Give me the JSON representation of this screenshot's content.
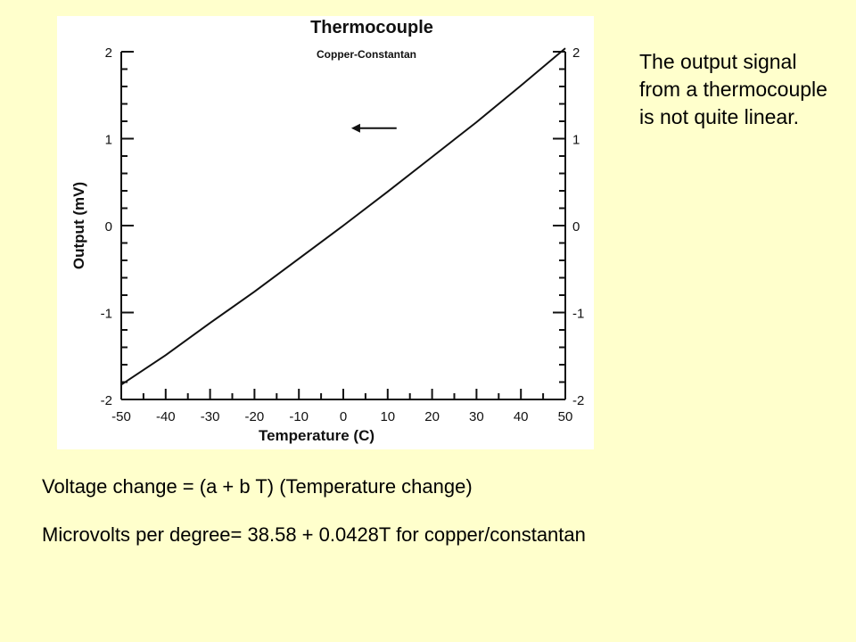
{
  "chart_data": {
    "type": "line",
    "title": "Thermocouple",
    "subtitle": "Copper-Constantan",
    "xlabel": "Temperature (C)",
    "ylabel": "Output (mV)",
    "xlim": [
      -50,
      50
    ],
    "ylim": [
      -2,
      2
    ],
    "x_ticks": [
      "-50",
      "-40",
      "-30",
      "-20",
      "-10",
      "0",
      "10",
      "20",
      "30",
      "40",
      "50"
    ],
    "y_ticks_left": [
      "-2",
      "-1",
      "0",
      "1",
      "2"
    ],
    "y_ticks_right": [
      "-2",
      "-1",
      "0",
      "1",
      "2"
    ],
    "series": [
      {
        "x": [
          -50,
          -40,
          -30,
          -20,
          -10,
          0,
          10,
          20,
          30,
          40,
          50
        ],
        "values": [
          -1.83,
          -1.49,
          -1.12,
          -0.76,
          -0.38,
          0.0,
          0.39,
          0.79,
          1.19,
          1.61,
          2.04
        ]
      }
    ],
    "annotation": "arrow pointing left toward the curve near 1.1 mV"
  },
  "side_note": "The output signal from a thermocouple is not quite linear.",
  "formula_1": "Voltage change = (a + b T) (Temperature change)",
  "formula_2": "Microvolts per degree= 38.58 + 0.0428T for copper/constantan"
}
